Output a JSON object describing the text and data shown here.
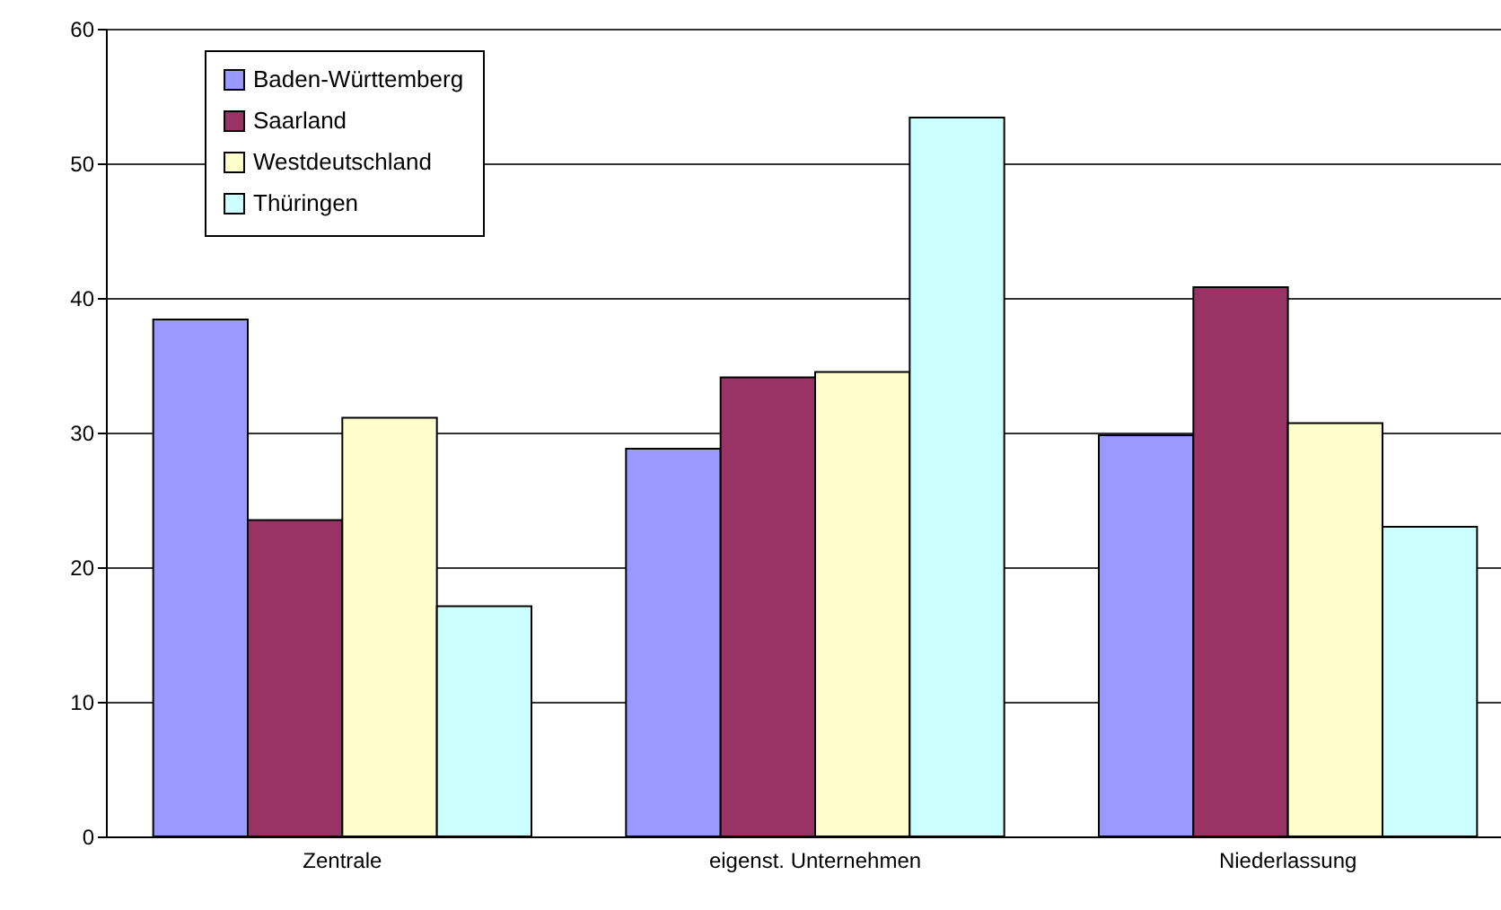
{
  "chart_data": {
    "type": "bar",
    "categories": [
      "Zentrale",
      "eigenst. Unternehmen",
      "Niederlassung"
    ],
    "series": [
      {
        "name": "Baden-Württemberg",
        "color": "#9999ff",
        "values": [
          38.4,
          28.8,
          29.8
        ]
      },
      {
        "name": "Saarland",
        "color": "#993366",
        "values": [
          23.5,
          34.1,
          40.8
        ]
      },
      {
        "name": "Westdeutschland",
        "color": "#ffffcc",
        "values": [
          31.1,
          34.5,
          30.7
        ]
      },
      {
        "name": "Thüringen",
        "color": "#ccffff",
        "values": [
          17.1,
          53.4,
          23.0
        ]
      }
    ],
    "ylim": [
      0,
      60
    ],
    "yticks": [
      0,
      10,
      20,
      30,
      40,
      50,
      60
    ],
    "grid": "y",
    "legend": "top left"
  }
}
